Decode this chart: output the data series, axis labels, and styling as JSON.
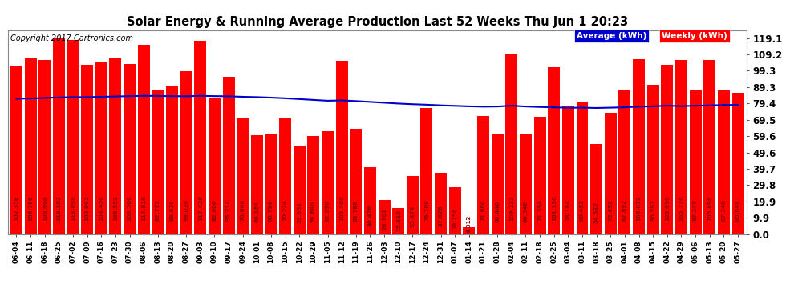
{
  "title": "Solar Energy & Running Average Production Last 52 Weeks Thu Jun 1 20:23",
  "copyright": "Copyright 2017 Cartronics.com",
  "background_color": "#ffffff",
  "plot_bg_color": "#ffffff",
  "bar_color": "#ff0000",
  "avg_line_color": "#0000cc",
  "yticks": [
    0.0,
    9.9,
    19.9,
    29.8,
    39.7,
    49.6,
    59.6,
    69.5,
    79.4,
    89.3,
    99.3,
    109.2,
    119.1
  ],
  "ylim": [
    0.0,
    124.0
  ],
  "categories": [
    "06-04",
    "06-11",
    "06-18",
    "06-25",
    "07-02",
    "07-09",
    "07-16",
    "07-23",
    "07-30",
    "08-06",
    "08-13",
    "08-20",
    "08-27",
    "09-03",
    "09-10",
    "09-17",
    "09-24",
    "10-01",
    "10-08",
    "10-15",
    "10-22",
    "10-29",
    "11-05",
    "11-12",
    "11-19",
    "11-26",
    "12-03",
    "12-10",
    "12-17",
    "12-24",
    "12-31",
    "01-07",
    "01-14",
    "01-21",
    "01-28",
    "02-04",
    "02-11",
    "02-18",
    "02-25",
    "03-04",
    "03-11",
    "03-18",
    "03-25",
    "04-01",
    "04-08",
    "04-15",
    "04-22",
    "04-29",
    "05-06",
    "05-13",
    "05-20",
    "05-27"
  ],
  "weekly_values": [
    102.358,
    106.766,
    105.668,
    119.102,
    118.098,
    102.902,
    104.456,
    106.592,
    103.506,
    114.816,
    87.772,
    89.926,
    99.036,
    117.426,
    82.606,
    95.714,
    70.046,
    60.164,
    60.794,
    70.224,
    53.952,
    59.68,
    62.27,
    105.406,
    63.788,
    40.426,
    20.702,
    15.81,
    35.474,
    76.708,
    37.026,
    28.256,
    4.312,
    71.66,
    60.446,
    109.232,
    60.348,
    71.364,
    101.15,
    78.164,
    80.452,
    54.532,
    73.652,
    87.692,
    106.072,
    90.592,
    102.696,
    105.776,
    87.248,
    105.696,
    87.248,
    85.648
  ],
  "avg_values": [
    82.2,
    82.4,
    82.7,
    83.0,
    83.2,
    83.2,
    83.4,
    83.6,
    83.8,
    84.0,
    83.9,
    83.8,
    83.7,
    84.0,
    83.8,
    83.7,
    83.4,
    83.2,
    82.9,
    82.5,
    82.0,
    81.5,
    81.0,
    81.2,
    80.8,
    80.3,
    79.8,
    79.3,
    78.9,
    78.6,
    78.2,
    77.9,
    77.6,
    77.4,
    77.5,
    78.0,
    77.5,
    77.2,
    77.0,
    76.7,
    76.8,
    76.6,
    76.8,
    77.0,
    77.4,
    77.6,
    78.0,
    77.7,
    78.0,
    78.2,
    78.4,
    78.5
  ],
  "legend_avg_bg": "#0000cc",
  "legend_weekly_bg": "#ff0000",
  "legend_avg_label": "Average (kWh)",
  "legend_weekly_label": "Weekly (kWh)"
}
